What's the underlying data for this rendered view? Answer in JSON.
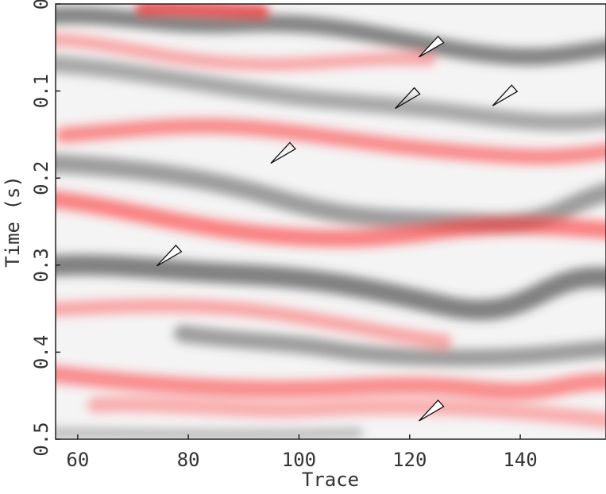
{
  "chart_data": {
    "type": "image",
    "xlabel": "Trace",
    "ylabel": "Time (s)",
    "xlim": [
      56,
      155.5
    ],
    "ylim": [
      0.5,
      0
    ],
    "xticks": [
      60,
      80,
      100,
      120,
      140
    ],
    "yticks": [
      0,
      0.1,
      0.2,
      0.3,
      0.4,
      0.5
    ],
    "annotations": [
      {
        "x": 121.7,
        "y": 0.061,
        "fill": "white"
      },
      {
        "x": 117.4,
        "y": 0.12,
        "fill": "none"
      },
      {
        "x": 135,
        "y": 0.117,
        "fill": "none"
      },
      {
        "x": 94.9,
        "y": 0.183,
        "fill": "none"
      },
      {
        "x": 74.3,
        "y": 0.301,
        "fill": "white"
      },
      {
        "x": 121.7,
        "y": 0.479,
        "fill": "white"
      }
    ]
  }
}
